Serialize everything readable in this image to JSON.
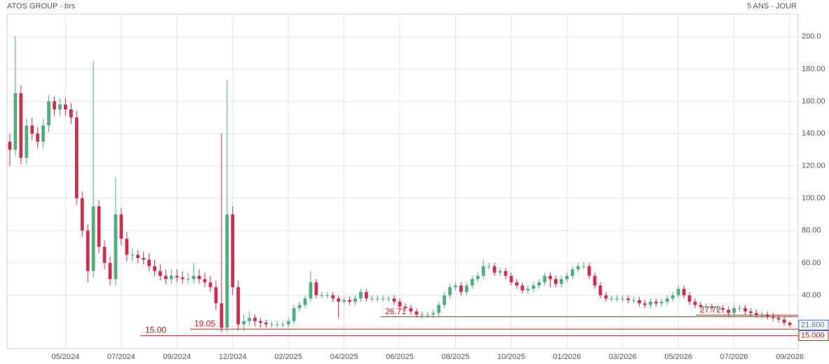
{
  "chart_data": {
    "type": "candlestick",
    "title": "ATOS GROUP - brs",
    "period": "5 ANS - JOUR",
    "up_color": "#4caf7d",
    "down_color": "#d42a4e",
    "level_color": "#cc1b1b",
    "last_color": "#3d6fd6",
    "grid": true,
    "xlim": [
      -0.5,
      141.5
    ],
    "ylim": [
      7,
      214
    ],
    "yticks": [
      {
        "value": 40,
        "label": "40.00"
      },
      {
        "value": 60,
        "label": "60.00"
      },
      {
        "value": 80,
        "label": "80.00"
      },
      {
        "value": 100,
        "label": "100.00"
      },
      {
        "value": 120,
        "label": "120.00"
      },
      {
        "value": 140,
        "label": "140.00"
      },
      {
        "value": 160,
        "label": "160.00"
      },
      {
        "value": 180,
        "label": "180.00"
      },
      {
        "value": 200,
        "label": "200.0"
      }
    ],
    "xticks": [
      {
        "value": 10,
        "label": "05/2024"
      },
      {
        "value": 20,
        "label": "07/2024"
      },
      {
        "value": 30,
        "label": "09/2024"
      },
      {
        "value": 40,
        "label": "12/2024"
      },
      {
        "value": 50,
        "label": "02/2025"
      },
      {
        "value": 60,
        "label": "04/2025"
      },
      {
        "value": 70,
        "label": "06/2025"
      },
      {
        "value": 80,
        "label": "08/2025"
      },
      {
        "value": 90,
        "label": "10/2025"
      },
      {
        "value": 100,
        "label": "01/2026"
      },
      {
        "value": 110,
        "label": "03/2026"
      },
      {
        "value": 120,
        "label": "05/2026"
      },
      {
        "value": 130,
        "label": "07/2026"
      },
      {
        "value": 140,
        "label": "09/2026"
      }
    ],
    "levels": [
      {
        "value": 15,
        "label": "15.00",
        "axis_label": "15.000"
      },
      {
        "value": 19.05,
        "label": "19.05"
      },
      {
        "value": 26.71,
        "label": "26.71"
      },
      {
        "value": 27.72,
        "label": "27.72"
      }
    ],
    "last": {
      "value": 21.6,
      "label": "21.600"
    },
    "open": [
      135,
      130,
      165,
      125,
      145,
      140,
      135,
      145,
      160,
      155,
      158,
      155,
      150,
      100,
      80,
      55,
      95,
      70,
      60,
      50,
      90,
      75,
      65,
      65,
      63,
      62,
      58,
      55,
      52,
      50,
      52,
      51,
      50,
      50,
      52,
      50,
      48,
      45,
      35,
      20,
      90,
      45,
      22,
      24,
      26,
      24,
      23,
      22,
      22,
      22,
      22,
      24,
      32,
      34,
      38,
      48,
      40,
      40,
      40,
      38,
      36,
      37,
      36,
      38,
      42,
      38,
      38,
      38,
      38,
      38,
      36,
      33,
      32,
      30,
      28,
      28,
      28,
      29,
      34,
      40,
      45,
      46,
      42,
      46,
      50,
      52,
      58,
      58,
      54,
      55,
      52,
      48,
      46,
      43,
      44,
      46,
      48,
      52,
      50,
      47,
      50,
      52,
      56,
      58,
      58,
      52,
      46,
      40,
      38,
      38,
      38,
      38,
      37,
      37,
      35,
      34,
      36,
      35,
      36,
      38,
      40,
      44,
      40,
      36,
      34,
      33,
      33,
      32,
      32,
      31,
      29,
      32,
      32,
      30,
      29,
      28,
      28,
      27,
      26,
      25,
      23
    ],
    "high": [
      140,
      200,
      170,
      149,
      150,
      144,
      149,
      164,
      163,
      162,
      162,
      159,
      154,
      104,
      84,
      185,
      99,
      74,
      64,
      113,
      94,
      79,
      69,
      68,
      67,
      66,
      62,
      59,
      56,
      56,
      56,
      55,
      54,
      60,
      56,
      54,
      52,
      49,
      140,
      173,
      95,
      49,
      28,
      30,
      28,
      26,
      25,
      24,
      24,
      24,
      26,
      34,
      36,
      40,
      55,
      50,
      42,
      42,
      42,
      40,
      39,
      39,
      40,
      44,
      44,
      40,
      40,
      40,
      40,
      40,
      38,
      35,
      34,
      32,
      30,
      30,
      31,
      36,
      42,
      47,
      48,
      48,
      48,
      52,
      54,
      62,
      60,
      60,
      57,
      57,
      54,
      50,
      48,
      46,
      48,
      50,
      54,
      54,
      52,
      52,
      54,
      58,
      60,
      61,
      60,
      54,
      48,
      42,
      40,
      40,
      40,
      40,
      39,
      39,
      37,
      38,
      38,
      38,
      40,
      42,
      46,
      46,
      42,
      38,
      36,
      35,
      35,
      34,
      34,
      33,
      34,
      34,
      34,
      32,
      31,
      30,
      30,
      29,
      28,
      27,
      24
    ],
    "low": [
      120,
      126,
      121,
      121,
      136,
      131,
      131,
      141,
      151,
      151,
      151,
      146,
      96,
      76,
      48,
      51,
      66,
      56,
      46,
      46,
      71,
      61,
      61,
      60,
      59,
      55,
      52,
      49,
      47,
      47,
      48,
      47,
      47,
      47,
      47,
      45,
      42,
      31,
      17,
      17,
      40,
      18,
      18,
      21,
      21,
      20,
      20,
      20,
      20,
      20,
      20,
      22,
      30,
      32,
      36,
      38,
      38,
      38,
      36,
      26,
      34,
      34,
      34,
      36,
      36,
      36,
      36,
      36,
      36,
      34,
      31,
      30,
      28,
      26,
      26,
      26,
      26,
      27,
      32,
      38,
      43,
      40,
      40,
      44,
      48,
      50,
      56,
      52,
      52,
      50,
      46,
      44,
      41,
      41,
      42,
      44,
      46,
      45,
      45,
      45,
      48,
      50,
      54,
      56,
      50,
      44,
      38,
      36,
      36,
      36,
      36,
      35,
      35,
      33,
      32,
      32,
      33,
      33,
      34,
      36,
      38,
      38,
      34,
      32,
      31,
      31,
      30,
      30,
      29,
      27,
      27,
      30,
      28,
      27,
      26,
      26,
      25,
      24,
      23,
      21,
      20
    ],
    "close": [
      130,
      165,
      125,
      145,
      140,
      135,
      145,
      160,
      155,
      158,
      155,
      150,
      100,
      80,
      55,
      95,
      70,
      60,
      50,
      90,
      75,
      65,
      65,
      63,
      62,
      58,
      55,
      52,
      50,
      52,
      51,
      50,
      50,
      52,
      50,
      48,
      45,
      35,
      20,
      90,
      45,
      22,
      24,
      26,
      24,
      23,
      22,
      22,
      22,
      22,
      24,
      32,
      34,
      38,
      48,
      40,
      40,
      40,
      38,
      36,
      37,
      36,
      38,
      42,
      38,
      38,
      38,
      38,
      38,
      36,
      33,
      32,
      30,
      28,
      28,
      28,
      29,
      34,
      40,
      45,
      46,
      42,
      46,
      50,
      52,
      58,
      58,
      54,
      55,
      52,
      48,
      46,
      43,
      44,
      46,
      48,
      52,
      50,
      47,
      50,
      52,
      56,
      58,
      58,
      52,
      46,
      40,
      38,
      38,
      38,
      38,
      37,
      37,
      35,
      34,
      36,
      35,
      36,
      38,
      40,
      44,
      40,
      36,
      34,
      33,
      33,
      32,
      32,
      31,
      29,
      32,
      32,
      30,
      29,
      28,
      28,
      27,
      26,
      25,
      23,
      21.6
    ]
  }
}
